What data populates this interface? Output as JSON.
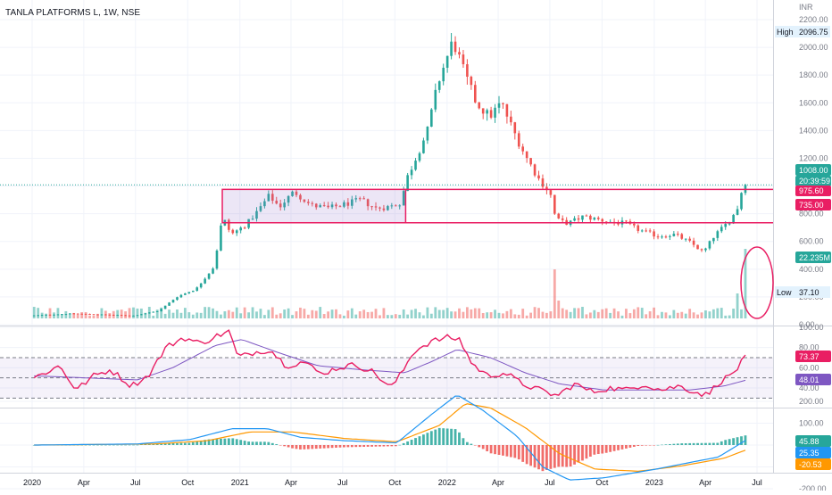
{
  "header": {
    "symbol_title": "TANLA PLATFORMS L, 1W, NSE"
  },
  "colors": {
    "up": "#26a69a",
    "down": "#ef5350",
    "rect": "#e91e63",
    "rsi": "#e91e63",
    "rsi_ma": "#7e57c2",
    "macd": "#2196f3",
    "signal": "#ff9800",
    "hist_up": "#26a69a",
    "hist_down": "#ef5350",
    "grid": "#f0f3fa",
    "text": "#131722",
    "axis_text": "#787b86",
    "ellipse": "#e91e63"
  },
  "chart_data": [
    {
      "id": "price",
      "type": "candlestick",
      "currency": "INR",
      "y_ticks": [
        "2200.00",
        "2000.00",
        "1800.00",
        "1600.00",
        "1400.00",
        "1200.00",
        "1000.00",
        "800.00",
        "600.00",
        "400.00",
        "200.00",
        "0.00"
      ],
      "y_tick_values": [
        2200,
        2000,
        1800,
        1600,
        1400,
        1200,
        1000,
        800,
        600,
        400,
        200,
        0
      ],
      "x_ticks": [
        "2020",
        "Apr",
        "Jul",
        "Oct",
        "2021",
        "Apr",
        "Jul",
        "Oct",
        "2022",
        "Apr",
        "Jul",
        "Oct",
        "2023",
        "Apr",
        "Jul"
      ],
      "x_tick_dates": [
        "2020-01-01",
        "2020-04-01",
        "2020-07-01",
        "2020-10-01",
        "2021-01-01",
        "2021-04-01",
        "2021-07-01",
        "2021-10-01",
        "2022-01-01",
        "2022-04-01",
        "2022-07-01",
        "2022-10-01",
        "2023-01-01",
        "2023-04-01",
        "2023-07-01"
      ],
      "high_label": "High",
      "high_value": "2096.75",
      "low_label": "Low",
      "low_value": "37.10",
      "last_price": "1008.00",
      "countdown": "20:39:59",
      "levels": [
        {
          "label": "975.60",
          "value": 975.6,
          "color": "#e91e63"
        },
        {
          "label": "735.00",
          "value": 735.0,
          "color": "#e91e63"
        }
      ],
      "volume_label": "22.235M",
      "consolidation_box": {
        "start": "2020-12-01",
        "end": "2021-10-20",
        "top": 975.6,
        "bottom": 735
      },
      "keypoints": [
        [
          "2020-01-01",
          65
        ],
        [
          "2020-03-15",
          80
        ],
        [
          "2020-07-01",
          65
        ],
        [
          "2020-08-15",
          100
        ],
        [
          "2020-09-15",
          200
        ],
        [
          "2020-10-20",
          260
        ],
        [
          "2020-11-20",
          420
        ],
        [
          "2020-12-05",
          780
        ],
        [
          "2020-12-20",
          650
        ],
        [
          "2021-01-15",
          720
        ],
        [
          "2021-02-05",
          820
        ],
        [
          "2021-02-25",
          930
        ],
        [
          "2021-03-15",
          850
        ],
        [
          "2021-04-10",
          960
        ],
        [
          "2021-05-10",
          860
        ],
        [
          "2021-06-10",
          840
        ],
        [
          "2021-07-10",
          870
        ],
        [
          "2021-08-05",
          900
        ],
        [
          "2021-09-01",
          840
        ],
        [
          "2021-09-25",
          850
        ],
        [
          "2021-10-15",
          880
        ],
        [
          "2021-10-25",
          1050
        ],
        [
          "2021-11-10",
          1200
        ],
        [
          "2021-12-01",
          1400
        ],
        [
          "2021-12-20",
          1750
        ],
        [
          "2022-01-15",
          2050
        ],
        [
          "2022-02-05",
          1800
        ],
        [
          "2022-02-25",
          1600
        ],
        [
          "2022-03-20",
          1500
        ],
        [
          "2022-04-10",
          1600
        ],
        [
          "2022-05-01",
          1400
        ],
        [
          "2022-05-25",
          1200
        ],
        [
          "2022-06-15",
          1050
        ],
        [
          "2022-07-05",
          950
        ],
        [
          "2022-07-15",
          760
        ],
        [
          "2022-08-05",
          730
        ],
        [
          "2022-09-01",
          780
        ],
        [
          "2022-09-25",
          760
        ],
        [
          "2022-10-20",
          740
        ],
        [
          "2022-11-15",
          730
        ],
        [
          "2022-12-10",
          680
        ],
        [
          "2023-01-10",
          640
        ],
        [
          "2023-02-10",
          650
        ],
        [
          "2023-03-10",
          590
        ],
        [
          "2023-04-01",
          520
        ],
        [
          "2023-04-20",
          640
        ],
        [
          "2023-05-05",
          700
        ],
        [
          "2023-05-20",
          760
        ],
        [
          "2023-06-01",
          850
        ],
        [
          "2023-06-10",
          1008
        ]
      ],
      "volume_spikes": [
        [
          "2022-07-08",
          0.55
        ],
        [
          "2022-07-15",
          0.2
        ],
        [
          "2023-05-26",
          0.28
        ],
        [
          "2023-06-09",
          0.78
        ]
      ]
    },
    {
      "id": "rsi",
      "type": "line",
      "y_ticks": [
        "100.00",
        "80.00",
        "60.00",
        "40.00"
      ],
      "y_tick_values": [
        100,
        80,
        60,
        40
      ],
      "band_upper": 70,
      "band_mid": 50,
      "band_lower": 30,
      "value_label": "73.37",
      "ma_label": "48.01",
      "keypoints": [
        [
          "2020-01-01",
          50
        ],
        [
          "2020-02-15",
          62
        ],
        [
          "2020-03-15",
          38
        ],
        [
          "2020-04-15",
          52
        ],
        [
          "2020-05-15",
          58
        ],
        [
          "2020-06-20",
          42
        ],
        [
          "2020-07-20",
          52
        ],
        [
          "2020-08-20",
          80
        ],
        [
          "2020-09-20",
          90
        ],
        [
          "2020-10-20",
          84
        ],
        [
          "2020-11-20",
          92
        ],
        [
          "2020-12-10",
          96
        ],
        [
          "2020-12-25",
          70
        ],
        [
          "2021-01-20",
          75
        ],
        [
          "2021-02-20",
          78
        ],
        [
          "2021-03-20",
          62
        ],
        [
          "2021-04-20",
          66
        ],
        [
          "2021-05-20",
          54
        ],
        [
          "2021-06-20",
          60
        ],
        [
          "2021-07-20",
          63
        ],
        [
          "2021-08-20",
          56
        ],
        [
          "2021-09-20",
          40
        ],
        [
          "2021-10-10",
          55
        ],
        [
          "2021-10-30",
          76
        ],
        [
          "2021-11-30",
          86
        ],
        [
          "2021-12-30",
          90
        ],
        [
          "2022-01-20",
          88
        ],
        [
          "2022-02-10",
          64
        ],
        [
          "2022-03-10",
          52
        ],
        [
          "2022-04-10",
          55
        ],
        [
          "2022-05-10",
          44
        ],
        [
          "2022-06-10",
          38
        ],
        [
          "2022-07-10",
          32
        ],
        [
          "2022-08-10",
          44
        ],
        [
          "2022-09-10",
          36
        ],
        [
          "2022-10-10",
          40
        ],
        [
          "2022-11-10",
          38
        ],
        [
          "2022-12-10",
          44
        ],
        [
          "2023-01-10",
          38
        ],
        [
          "2023-02-10",
          42
        ],
        [
          "2023-03-10",
          36
        ],
        [
          "2023-04-01",
          33
        ],
        [
          "2023-04-20",
          45
        ],
        [
          "2023-05-10",
          52
        ],
        [
          "2023-05-25",
          60
        ],
        [
          "2023-06-10",
          73.37
        ]
      ],
      "ma_keypoints": [
        [
          "2020-01-01",
          52
        ],
        [
          "2020-04-01",
          50
        ],
        [
          "2020-07-01",
          48
        ],
        [
          "2020-09-01",
          60
        ],
        [
          "2020-11-15",
          82
        ],
        [
          "2021-01-01",
          88
        ],
        [
          "2021-03-01",
          76
        ],
        [
          "2021-05-15",
          62
        ],
        [
          "2021-08-01",
          58
        ],
        [
          "2021-10-15",
          55
        ],
        [
          "2021-12-01",
          66
        ],
        [
          "2022-01-15",
          78
        ],
        [
          "2022-03-15",
          70
        ],
        [
          "2022-05-15",
          55
        ],
        [
          "2022-07-15",
          44
        ],
        [
          "2022-10-01",
          38
        ],
        [
          "2022-12-15",
          38
        ],
        [
          "2023-03-01",
          38
        ],
        [
          "2023-05-01",
          42
        ],
        [
          "2023-06-10",
          48.01
        ]
      ]
    },
    {
      "id": "macd",
      "type": "line",
      "y_ticks": [
        "200.00",
        "100.00",
        "0.00",
        "-100.00",
        "-200.00"
      ],
      "y_tick_values": [
        200,
        100,
        0,
        -100,
        -200
      ],
      "series": [
        {
          "name": "",
          "value_label": "45.88",
          "color": "#26a69a"
        },
        {
          "name": "",
          "value_label": "25.35",
          "color": "#2196f3"
        },
        {
          "name": "",
          "value_label": "-20.53",
          "color": "#ff9800"
        }
      ],
      "macd_keypoints": [
        [
          "2020-01-01",
          0
        ],
        [
          "2020-07-01",
          5
        ],
        [
          "2020-10-01",
          25
        ],
        [
          "2020-12-15",
          75
        ],
        [
          "2021-02-15",
          75
        ],
        [
          "2021-04-15",
          35
        ],
        [
          "2021-07-01",
          20
        ],
        [
          "2021-10-01",
          10
        ],
        [
          "2021-12-01",
          140
        ],
        [
          "2022-01-15",
          230
        ],
        [
          "2022-03-01",
          160
        ],
        [
          "2022-05-01",
          40
        ],
        [
          "2022-06-15",
          -100
        ],
        [
          "2022-08-01",
          -160
        ],
        [
          "2022-10-01",
          -150
        ],
        [
          "2023-01-01",
          -110
        ],
        [
          "2023-03-01",
          -80
        ],
        [
          "2023-04-20",
          -55
        ],
        [
          "2023-06-10",
          25.35
        ]
      ],
      "signal_keypoints": [
        [
          "2020-01-01",
          0
        ],
        [
          "2020-08-01",
          5
        ],
        [
          "2020-11-01",
          20
        ],
        [
          "2021-01-15",
          60
        ],
        [
          "2021-04-01",
          60
        ],
        [
          "2021-07-01",
          30
        ],
        [
          "2021-10-01",
          15
        ],
        [
          "2021-12-15",
          90
        ],
        [
          "2022-01-30",
          190
        ],
        [
          "2022-03-15",
          170
        ],
        [
          "2022-05-15",
          80
        ],
        [
          "2022-07-15",
          -40
        ],
        [
          "2022-09-15",
          -110
        ],
        [
          "2022-12-01",
          -120
        ],
        [
          "2023-02-15",
          -95
        ],
        [
          "2023-05-01",
          -60
        ],
        [
          "2023-06-10",
          -20.53
        ]
      ]
    }
  ]
}
